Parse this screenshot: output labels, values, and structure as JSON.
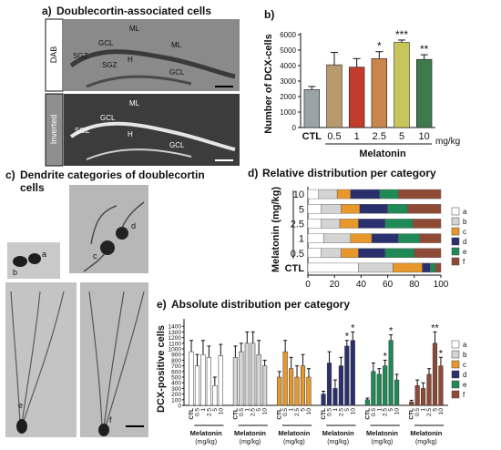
{
  "panels": {
    "a": {
      "letter": "a)",
      "title": "Doublecortin-associated cells",
      "side_labels": [
        "DAB",
        "Inverted"
      ],
      "region_labels": [
        "ML",
        "ML",
        "GCL",
        "SGZ",
        "SGZ",
        "H",
        "GCL"
      ]
    },
    "b": {
      "letter": "b)"
    },
    "c": {
      "letter": "c)",
      "title_line1": "Dendrite categories of doublecortin",
      "title_line2": "cells",
      "cell_labels": [
        "a",
        "b",
        "c",
        "d",
        "e",
        "f"
      ]
    },
    "d": {
      "letter": "d)",
      "title": "Relative distribution per category"
    },
    "e": {
      "letter": "e)",
      "title": "Absolute distribution per category"
    }
  },
  "colors": {
    "b_bars": [
      "#9aa3a6",
      "#b99a6c",
      "#c23b2b",
      "#c9854c",
      "#c8c65a",
      "#3e7a4e"
    ],
    "categories": [
      "#ffffff",
      "#d4d4d4",
      "#e8972a",
      "#2a2f6e",
      "#1f8a55",
      "#8f4a35"
    ]
  },
  "chart_data": [
    {
      "panel": "b",
      "type": "bar",
      "categories": [
        "CTL",
        "0.5",
        "1",
        "2.5",
        "5",
        "10"
      ],
      "values": [
        2450,
        4050,
        3900,
        4450,
        5500,
        4400
      ],
      "errors": [
        200,
        800,
        550,
        450,
        150,
        300
      ],
      "significance": [
        "",
        "",
        "",
        "*",
        "***",
        "**"
      ],
      "ylabel": "Number of DCX-cells",
      "xgroup_label": "Melatonin",
      "unit": "mg/kg",
      "ylim": [
        0,
        6000
      ],
      "yticks": [
        0,
        1000,
        2000,
        3000,
        4000,
        5000,
        6000
      ]
    },
    {
      "panel": "d",
      "type": "bar",
      "orientation": "horizontal",
      "stacked": true,
      "categories": [
        "10",
        "5",
        "2.5",
        "1",
        "0.5",
        "CTL"
      ],
      "category_axis_label": "Melatonin (mg/kg)",
      "series": [
        {
          "name": "a",
          "values": [
            8,
            10,
            10,
            12,
            10,
            38
          ]
        },
        {
          "name": "b",
          "values": [
            14,
            15,
            14,
            20,
            15,
            26
          ]
        },
        {
          "name": "c",
          "values": [
            10,
            14,
            14,
            16,
            13,
            22
          ]
        },
        {
          "name": "d",
          "values": [
            22,
            21,
            20,
            20,
            20,
            6
          ]
        },
        {
          "name": "e",
          "values": [
            14,
            15,
            21,
            16,
            22,
            4
          ]
        },
        {
          "name": "f",
          "values": [
            32,
            25,
            21,
            16,
            20,
            4
          ]
        }
      ],
      "xlim": [
        0,
        100
      ],
      "xticks": [
        0,
        20,
        40,
        60,
        80,
        100
      ],
      "legend": [
        "a",
        "b",
        "c",
        "d",
        "e",
        "f"
      ],
      "legend_position": "right"
    },
    {
      "panel": "e",
      "type": "bar",
      "ylabel": "DCX-positive cells",
      "ylim": [
        0,
        1500
      ],
      "yticks": [
        0,
        100,
        200,
        300,
        400,
        500,
        600,
        700,
        800,
        900,
        1000,
        1100,
        1200,
        1300,
        1400
      ],
      "categories": [
        "CTL",
        "0.5",
        "1",
        "2.5",
        "5",
        "10"
      ],
      "group_label": "Melatonin",
      "group_unit": "(mg/kg)",
      "legend": [
        "a",
        "b",
        "c",
        "d",
        "e",
        "f"
      ],
      "legend_position": "right",
      "series": [
        {
          "name": "a",
          "values": [
            950,
            700,
            900,
            850,
            350,
            880
          ],
          "errors": [
            200,
            200,
            250,
            200,
            150,
            200
          ],
          "significance": [
            "",
            "",
            "",
            "",
            "",
            ""
          ]
        },
        {
          "name": "b",
          "values": [
            850,
            950,
            1100,
            1100,
            900,
            700
          ],
          "errors": [
            200,
            150,
            200,
            200,
            250,
            100
          ],
          "significance": [
            "",
            "",
            "",
            "",
            "",
            ""
          ]
        },
        {
          "name": "c",
          "values": [
            500,
            950,
            650,
            500,
            700,
            500
          ],
          "errors": [
            100,
            200,
            200,
            200,
            200,
            150
          ],
          "significance": [
            "",
            "",
            "",
            "",
            "",
            ""
          ]
        },
        {
          "name": "d",
          "values": [
            200,
            750,
            300,
            700,
            1050,
            1150
          ],
          "errors": [
            50,
            200,
            150,
            150,
            100,
            150
          ],
          "significance": [
            "",
            "",
            "",
            "",
            "*",
            "*"
          ]
        },
        {
          "name": "e",
          "values": [
            100,
            600,
            550,
            700,
            1150,
            450
          ],
          "errors": [
            30,
            150,
            100,
            100,
            100,
            100
          ],
          "significance": [
            "",
            "",
            "",
            "*",
            "*",
            ""
          ]
        },
        {
          "name": "f",
          "values": [
            60,
            350,
            300,
            550,
            1100,
            700
          ],
          "errors": [
            30,
            100,
            100,
            100,
            200,
            150
          ],
          "significance": [
            "",
            "",
            "",
            "",
            "**",
            "*"
          ]
        }
      ]
    }
  ]
}
